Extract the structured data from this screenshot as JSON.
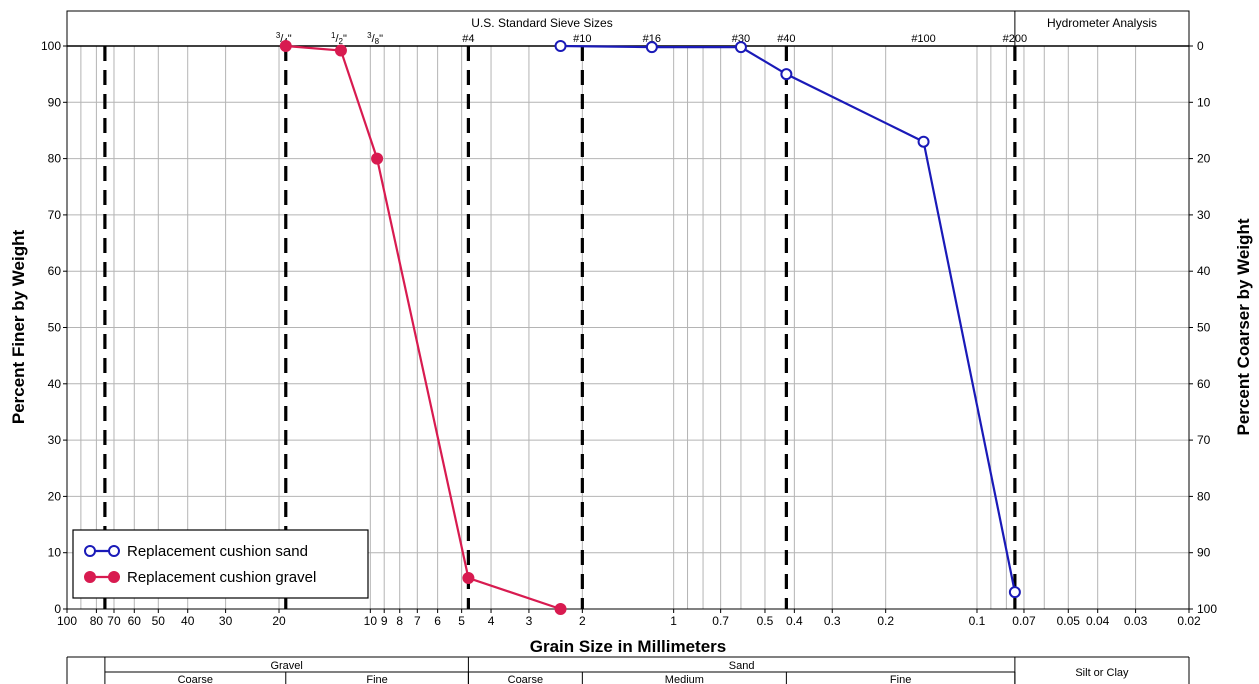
{
  "chart_data": {
    "type": "line",
    "x_scale": "log-reversed",
    "xlim": [
      100,
      0.02
    ],
    "ylim": [
      0,
      100
    ],
    "xlabel": "Grain Size in Millimeters",
    "ylabel_left": "Percent Finer by Weight",
    "ylabel_right": "Percent Coarser by Weight",
    "top_header_sieves": "U.S. Standard Sieve Sizes",
    "top_header_hydrometer": "Hydrometer Analysis",
    "x_tick_labels": [
      {
        "v": 100,
        "t": "100"
      },
      {
        "v": 80,
        "t": "80"
      },
      {
        "v": 70,
        "t": "70"
      },
      {
        "v": 60,
        "t": "60"
      },
      {
        "v": 50,
        "t": "50"
      },
      {
        "v": 40,
        "t": "40"
      },
      {
        "v": 30,
        "t": "30"
      },
      {
        "v": 20,
        "t": "20"
      },
      {
        "v": 10,
        "t": "10"
      },
      {
        "v": 9,
        "t": "9"
      },
      {
        "v": 8,
        "t": "8"
      },
      {
        "v": 7,
        "t": "7"
      },
      {
        "v": 6,
        "t": "6"
      },
      {
        "v": 5,
        "t": "5"
      },
      {
        "v": 4,
        "t": "4"
      },
      {
        "v": 3,
        "t": "3"
      },
      {
        "v": 2,
        "t": "2"
      },
      {
        "v": 1,
        "t": "1"
      },
      {
        "v": 0.7,
        "t": "0.7"
      },
      {
        "v": 0.5,
        "t": "0.5"
      },
      {
        "v": 0.4,
        "t": "0.4"
      },
      {
        "v": 0.3,
        "t": "0.3"
      },
      {
        "v": 0.2,
        "t": "0.2"
      },
      {
        "v": 0.1,
        "t": "0.1"
      },
      {
        "v": 0.07,
        "t": "0.07"
      },
      {
        "v": 0.05,
        "t": "0.05"
      },
      {
        "v": 0.04,
        "t": "0.04"
      },
      {
        "v": 0.03,
        "t": "0.03"
      },
      {
        "v": 0.02,
        "t": "0.02"
      }
    ],
    "y_left_ticks": [
      0,
      10,
      20,
      30,
      40,
      50,
      60,
      70,
      80,
      90,
      100
    ],
    "y_right_ticks": [
      100,
      90,
      80,
      70,
      60,
      50,
      40,
      30,
      20,
      10,
      0
    ],
    "sieve_lines": [
      {
        "size": 19,
        "label": "3/4\"",
        "num": "3",
        "den": "4"
      },
      {
        "size": 4.75,
        "label": "#4"
      },
      {
        "size": 2.0,
        "label": "#10"
      },
      {
        "size": 0.425,
        "label": "#40"
      },
      {
        "size": 0.075,
        "label": "#200"
      }
    ],
    "sieve_labels": [
      {
        "size": 19,
        "label": "3/4\"",
        "num": "3",
        "den": "4"
      },
      {
        "size": 12.5,
        "label": "1/2\"",
        "num": "1",
        "den": "2"
      },
      {
        "size": 9.5,
        "label": "3/8\"",
        "num": "3",
        "den": "8"
      },
      {
        "size": 4.75,
        "label": "#4"
      },
      {
        "size": 2.0,
        "label": "#10"
      },
      {
        "size": 1.18,
        "label": "#16"
      },
      {
        "size": 0.6,
        "label": "#30"
      },
      {
        "size": 0.425,
        "label": "#40"
      },
      {
        "size": 0.15,
        "label": "#100"
      },
      {
        "size": 0.075,
        "label": "#200"
      }
    ],
    "extra_dashed_line": 75,
    "series": [
      {
        "name": "Replacement cushion sand",
        "color": "#1a1ab8",
        "marker": "open-circle",
        "x": [
          2.36,
          1.18,
          0.6,
          0.425,
          0.15,
          0.075
        ],
        "y": [
          100,
          99.8,
          99.8,
          95,
          83,
          3
        ]
      },
      {
        "name": "Replacement cushion gravel",
        "color": "#d81b50",
        "marker": "filled-circle",
        "x": [
          19,
          12.5,
          9.5,
          4.75,
          2.36
        ],
        "y": [
          100,
          99.2,
          80,
          5.5,
          0
        ]
      }
    ],
    "bottom_table": {
      "groups": [
        {
          "label": "Gravel",
          "from": 75,
          "to": 4.75
        },
        {
          "label": "Sand",
          "from": 4.75,
          "to": 0.075
        },
        {
          "label": "Silt or Clay",
          "from": 0.075,
          "to": 0.02
        }
      ],
      "subgroups": [
        {
          "label": "Coarse",
          "from": 75,
          "to": 19
        },
        {
          "label": "Fine",
          "from": 19,
          "to": 4.75
        },
        {
          "label": "Coarse",
          "from": 4.75,
          "to": 2.0
        },
        {
          "label": "Medium",
          "from": 2.0,
          "to": 0.425
        },
        {
          "label": "Fine",
          "from": 0.425,
          "to": 0.075
        }
      ]
    }
  }
}
